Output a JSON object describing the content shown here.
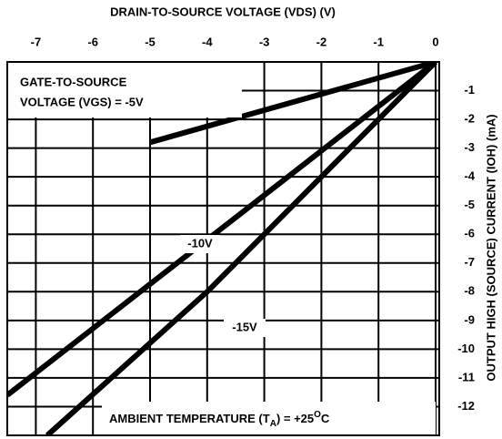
{
  "chart_data": {
    "type": "line",
    "xlabel": "DRAIN-TO-SOURCE VOLTAGE (VDS) (V)",
    "ylabel": "OUTPUT HIGH (SOURCE) CURRENT (IOH) (mA)",
    "xlim": [
      -7.5,
      0
    ],
    "ylim": [
      -13,
      0
    ],
    "xticks": [
      -7,
      -6,
      -5,
      -4,
      -3,
      -2,
      -1,
      0
    ],
    "yticks": [
      -12,
      -11,
      -10,
      -9,
      -8,
      -7,
      -6,
      -5,
      -4,
      -3,
      -2,
      -1
    ],
    "grid": true,
    "series": [
      {
        "name": "VOLTAGE (VGS) = -5V",
        "color": "#000000",
        "x": [
          0,
          -5
        ],
        "values": [
          0,
          -2.8
        ]
      },
      {
        "name": "-10V",
        "color": "#000000",
        "x": [
          0,
          -7.5
        ],
        "values": [
          0,
          -11.6
        ]
      },
      {
        "name": "-15V",
        "color": "#000000",
        "x": [
          0,
          -4,
          -6.8
        ],
        "values": [
          0,
          -8,
          -13
        ]
      }
    ],
    "annotations": [
      {
        "text": "GATE-TO-SOURCE"
      },
      {
        "text_parts": [
          "AMBIENT TEMPERATURE (T",
          "A",
          ") = +25",
          "O",
          "C"
        ]
      }
    ]
  }
}
